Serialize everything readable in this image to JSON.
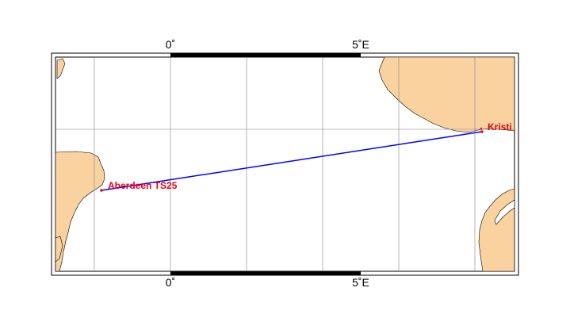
{
  "map": {
    "colors": {
      "ocean": "#ffffff",
      "land": "#fad2a0",
      "coast": "#000000",
      "grid": "#808080",
      "route": "#0000ff",
      "station": "#e8001c"
    },
    "axis_labels": {
      "top_zero": "0˚",
      "top_five": "5˚E",
      "bottom_zero": "0˚",
      "bottom_five": "5˚E"
    },
    "stations": {
      "start": "Aberdeen TS25",
      "end": "Kristi"
    },
    "route": {
      "from": "Aberdeen TS25",
      "to": "Kristi"
    }
  }
}
